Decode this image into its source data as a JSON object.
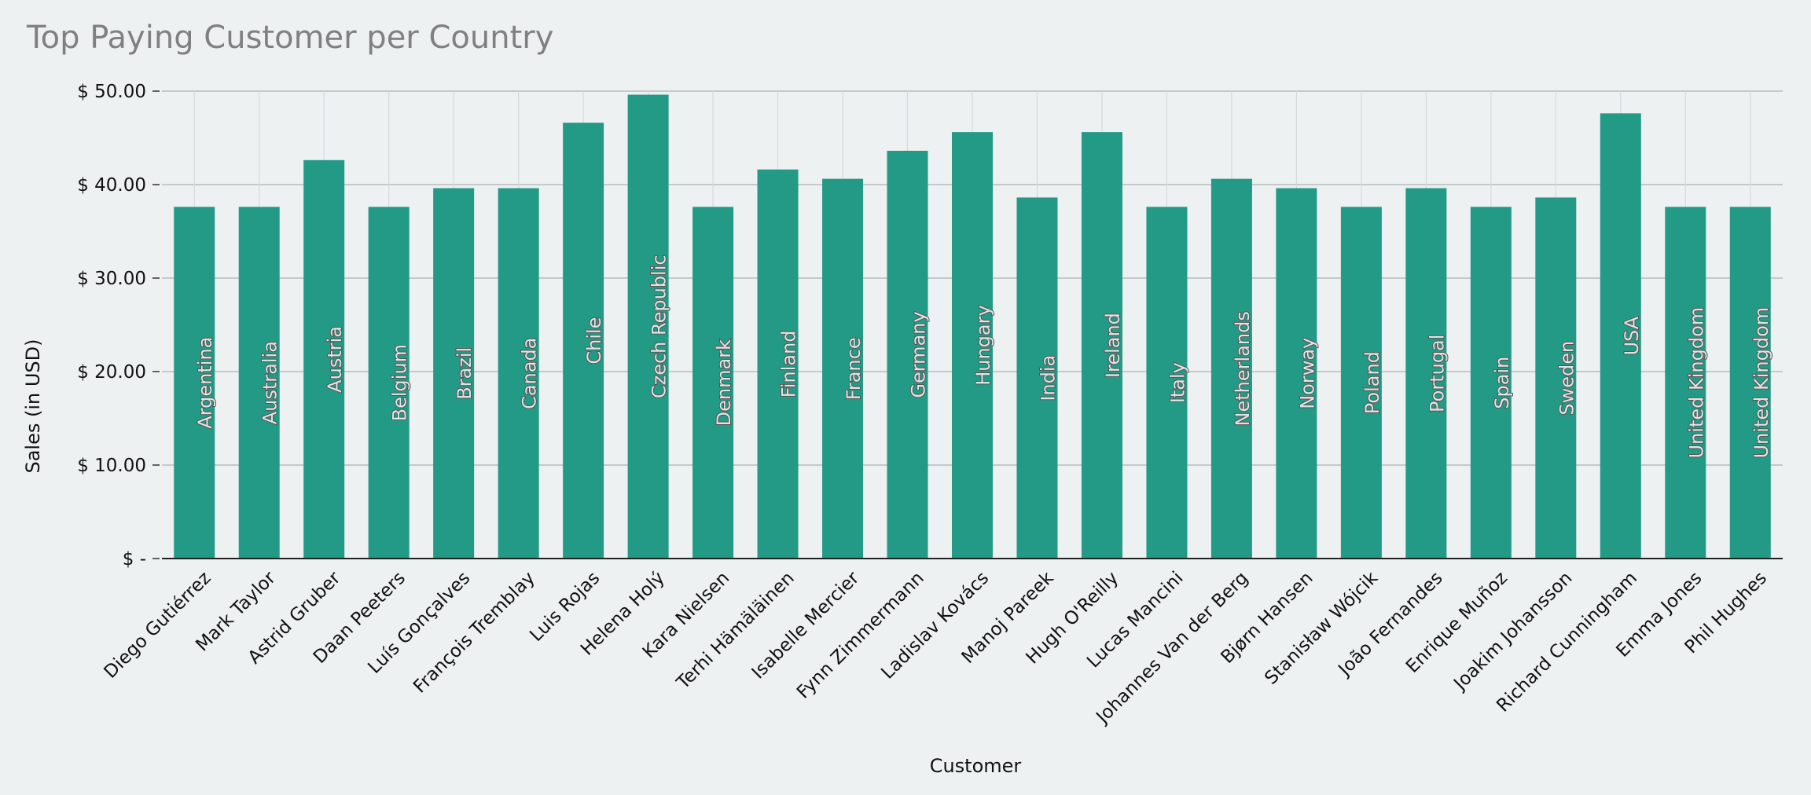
{
  "chart_data": {
    "type": "bar",
    "title": "Top Paying Customer per Country",
    "xlabel": "Customer",
    "ylabel": "Sales (in USD)",
    "ylim": [
      0,
      50
    ],
    "yticks": [
      0,
      10,
      20,
      30,
      40,
      50
    ],
    "ytick_labels": [
      "$ -",
      "$ 10.00",
      "$ 20.00",
      "$ 30.00",
      "$ 40.00",
      "$ 50.00"
    ],
    "grid": true,
    "bar_color": "#239a86",
    "categories": [
      "Diego Gutiérrez",
      "Mark Taylor",
      "Astrid Gruber",
      "Daan Peeters",
      "Luís Gonçalves",
      "François Tremblay",
      "Luis Rojas",
      "Helena Holý",
      "Kara Nielsen",
      "Terhi Hämäläinen",
      "Isabelle Mercier",
      "Fynn Zimmermann",
      "Ladislav Kovács",
      "Manoj Pareek",
      "Hugh O'Reilly",
      "Lucas Mancini",
      "Johannes Van der Berg",
      "Bjørn Hansen",
      "Stanisław Wójcik",
      "João Fernandes",
      "Enrique Muñoz",
      "Joakim Johansson",
      "Richard Cunningham",
      "Emma Jones",
      "Phil Hughes"
    ],
    "countries": [
      "Argentina",
      "Australia",
      "Austria",
      "Belgium",
      "Brazil",
      "Canada",
      "Chile",
      "Czech Republic",
      "Denmark",
      "Finland",
      "France",
      "Germany",
      "Hungary",
      "India",
      "Ireland",
      "Italy",
      "Netherlands",
      "Norway",
      "Poland",
      "Portugal",
      "Spain",
      "Sweden",
      "USA",
      "United Kingdom",
      "United Kingdom"
    ],
    "values": [
      37.62,
      37.62,
      42.62,
      37.62,
      39.62,
      39.62,
      46.62,
      49.62,
      37.62,
      41.62,
      40.62,
      43.62,
      45.62,
      38.62,
      45.62,
      37.62,
      40.62,
      39.62,
      37.62,
      39.62,
      37.62,
      38.62,
      47.62,
      37.62,
      37.62
    ]
  }
}
